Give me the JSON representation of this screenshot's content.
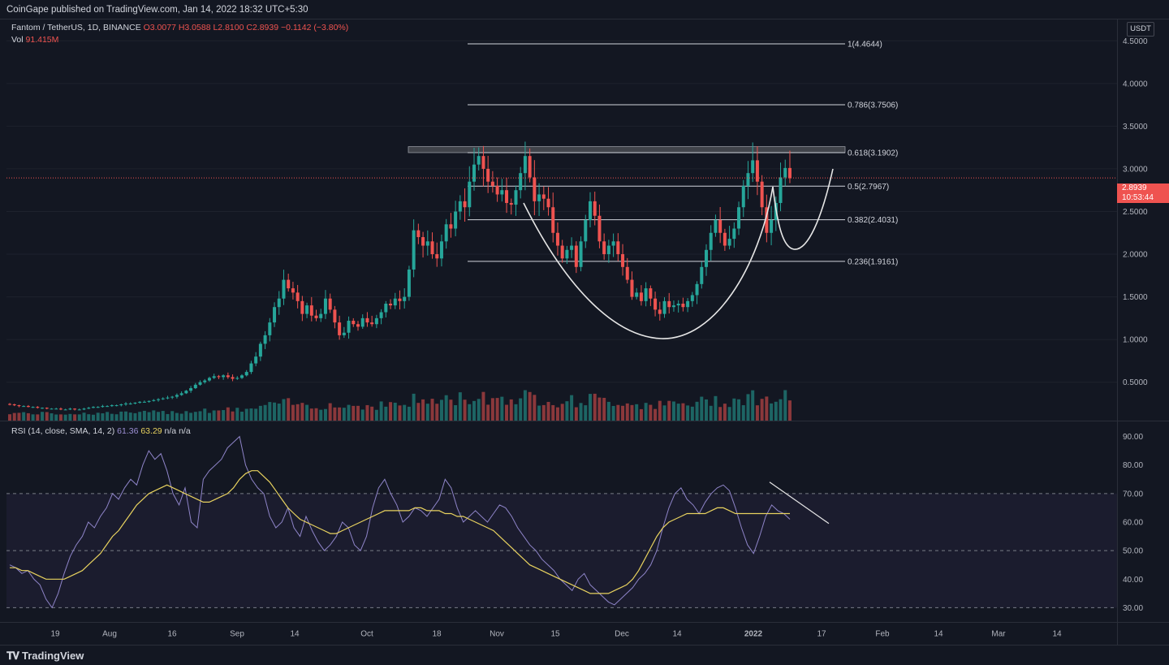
{
  "header": {
    "published": "CoinGape published on TradingView.com, Jan 14, 2022 18:32 UTC+5:30"
  },
  "symbol": {
    "name": "Fantom / TetherUS, 1D, BINANCE",
    "open": "O3.0077",
    "high": "H3.0588",
    "low": "L2.8100",
    "close": "C2.8939",
    "change": "−0.1142 (−3.80%)",
    "vol_label": "Vol",
    "vol_value": "91.415M",
    "currency": "USDT"
  },
  "last_price": {
    "value": "2.8939",
    "countdown": "10:53:44"
  },
  "rsi_legend": {
    "label": "RSI (14, close, SMA, 14, 2)",
    "rsi": "61.36",
    "ma": "63.29",
    "na1": "n/a",
    "na2": "n/a"
  },
  "footer": {
    "brand": "TradingView"
  },
  "colors": {
    "background": "#131722",
    "up": "#26a69a",
    "down": "#ef5350",
    "rsi": "#8e84c8",
    "rsi_ma": "#e8d25f",
    "fib": "#d1d4dc"
  },
  "chart_data": [
    {
      "type": "candlestick",
      "title": "Fantom / TetherUS, 1D, BINANCE",
      "ylim": [
        0.05,
        4.75
      ],
      "y_ticks": [
        "4.5000",
        "4.0000",
        "3.5000",
        "3.0000",
        "2.5000",
        "2.0000",
        "1.5000",
        "1.0000",
        "0.5000"
      ],
      "x_ticks": [
        "19",
        "Aug",
        "16",
        "Sep",
        "14",
        "Oct",
        "18",
        "Nov",
        "15",
        "Dec",
        "14",
        "2022",
        "17",
        "Feb",
        "14",
        "Mar",
        "14"
      ],
      "closes": [
        0.24,
        0.23,
        0.22,
        0.22,
        0.21,
        0.21,
        0.2,
        0.2,
        0.19,
        0.19,
        0.19,
        0.18,
        0.18,
        0.19,
        0.18,
        0.18,
        0.19,
        0.2,
        0.21,
        0.21,
        0.22,
        0.22,
        0.23,
        0.23,
        0.24,
        0.25,
        0.25,
        0.26,
        0.27,
        0.27,
        0.28,
        0.29,
        0.3,
        0.31,
        0.32,
        0.33,
        0.35,
        0.37,
        0.4,
        0.43,
        0.47,
        0.5,
        0.52,
        0.55,
        0.57,
        0.56,
        0.58,
        0.56,
        0.54,
        0.55,
        0.58,
        0.62,
        0.72,
        0.8,
        0.95,
        1.05,
        1.2,
        1.38,
        1.48,
        1.7,
        1.6,
        1.55,
        1.45,
        1.3,
        1.4,
        1.28,
        1.25,
        1.3,
        1.48,
        1.35,
        1.2,
        1.05,
        1.08,
        1.22,
        1.18,
        1.15,
        1.25,
        1.2,
        1.18,
        1.25,
        1.32,
        1.42,
        1.4,
        1.48,
        1.45,
        1.5,
        1.82,
        2.28,
        2.2,
        2.1,
        2.15,
        2.0,
        1.95,
        2.15,
        2.35,
        2.3,
        2.5,
        2.62,
        2.55,
        2.85,
        3.05,
        3.15,
        3.0,
        2.85,
        2.8,
        2.7,
        2.75,
        2.6,
        2.58,
        2.75,
        2.95,
        3.15,
        2.9,
        2.62,
        2.7,
        2.65,
        2.55,
        2.25,
        2.1,
        1.95,
        2.05,
        2.1,
        1.85,
        2.15,
        2.4,
        2.62,
        2.45,
        2.15,
        2.0,
        2.1,
        2.15,
        2.0,
        1.85,
        1.7,
        1.5,
        1.55,
        1.45,
        1.6,
        1.48,
        1.35,
        1.3,
        1.45,
        1.38,
        1.4,
        1.42,
        1.38,
        1.45,
        1.52,
        1.65,
        1.85,
        2.05,
        2.25,
        2.4,
        2.25,
        2.1,
        2.18,
        2.3,
        2.55,
        2.8,
        2.95,
        3.1,
        2.85,
        2.55,
        2.25,
        2.4,
        2.6,
        2.9,
        3.01,
        2.89
      ],
      "fib_levels": [
        {
          "label": "1(4.4644)",
          "value": 4.4644
        },
        {
          "label": "0.786(3.7506)",
          "value": 3.7506
        },
        {
          "label": "0.618(3.1902)",
          "value": 3.1902
        },
        {
          "label": "0.5(2.7967)",
          "value": 2.7967
        },
        {
          "label": "0.382(2.4031)",
          "value": 2.4031
        },
        {
          "label": "0.236(1.9161)",
          "value": 1.9161
        }
      ],
      "resistance_zone": [
        3.19,
        3.26
      ],
      "annotations": [
        "cup and handle pattern"
      ]
    },
    {
      "type": "line",
      "title": "RSI (14, close, SMA, 14, 2)",
      "ylim": [
        25,
        95
      ],
      "y_ticks": [
        "90.00",
        "80.00",
        "70.00",
        "60.00",
        "50.00",
        "40.00",
        "30.00"
      ],
      "bands": [
        70,
        50,
        30
      ],
      "rsi_values": [
        45,
        44,
        42,
        43,
        40,
        38,
        33,
        30,
        35,
        42,
        48,
        52,
        55,
        60,
        58,
        62,
        65,
        70,
        68,
        72,
        75,
        73,
        80,
        85,
        82,
        84,
        78,
        70,
        66,
        72,
        60,
        58,
        75,
        78,
        80,
        82,
        86,
        88,
        90,
        80,
        75,
        72,
        70,
        62,
        58,
        60,
        65,
        58,
        55,
        62,
        57,
        53,
        50,
        52,
        55,
        60,
        58,
        52,
        50,
        55,
        65,
        72,
        75,
        70,
        66,
        60,
        62,
        65,
        64,
        62,
        65,
        68,
        75,
        72,
        65,
        60,
        62,
        64,
        62,
        60,
        63,
        66,
        65,
        62,
        58,
        55,
        52,
        50,
        47,
        45,
        43,
        40,
        38,
        36,
        40,
        42,
        38,
        36,
        34,
        32,
        31,
        33,
        35,
        37,
        40,
        42,
        45,
        50,
        58,
        65,
        70,
        72,
        68,
        66,
        63,
        67,
        70,
        72,
        73,
        71,
        65,
        58,
        52,
        49,
        55,
        62,
        66,
        64,
        63,
        61
      ],
      "rsi_ma_values": [
        44,
        44,
        43,
        43,
        42,
        41,
        40,
        40,
        40,
        40,
        41,
        42,
        43,
        45,
        47,
        49,
        52,
        55,
        57,
        60,
        63,
        66,
        68,
        70,
        71,
        72,
        73,
        72,
        71,
        70,
        69,
        68,
        67,
        67,
        68,
        69,
        70,
        72,
        75,
        77,
        78,
        78,
        76,
        74,
        71,
        68,
        65,
        63,
        61,
        60,
        59,
        58,
        57,
        56,
        56,
        57,
        58,
        59,
        60,
        61,
        62,
        63,
        64,
        64,
        64,
        64,
        64,
        65,
        65,
        64,
        64,
        64,
        63,
        63,
        62,
        62,
        61,
        60,
        59,
        58,
        57,
        55,
        53,
        51,
        49,
        47,
        45,
        44,
        43,
        42,
        41,
        40,
        39,
        38,
        37,
        36,
        35,
        35,
        35,
        35,
        36,
        37,
        38,
        40,
        43,
        47,
        51,
        55,
        58,
        60,
        61,
        62,
        63,
        63,
        63,
        63,
        64,
        65,
        65,
        64,
        63,
        63,
        63,
        63,
        63,
        63,
        63,
        63,
        63,
        63
      ]
    }
  ]
}
